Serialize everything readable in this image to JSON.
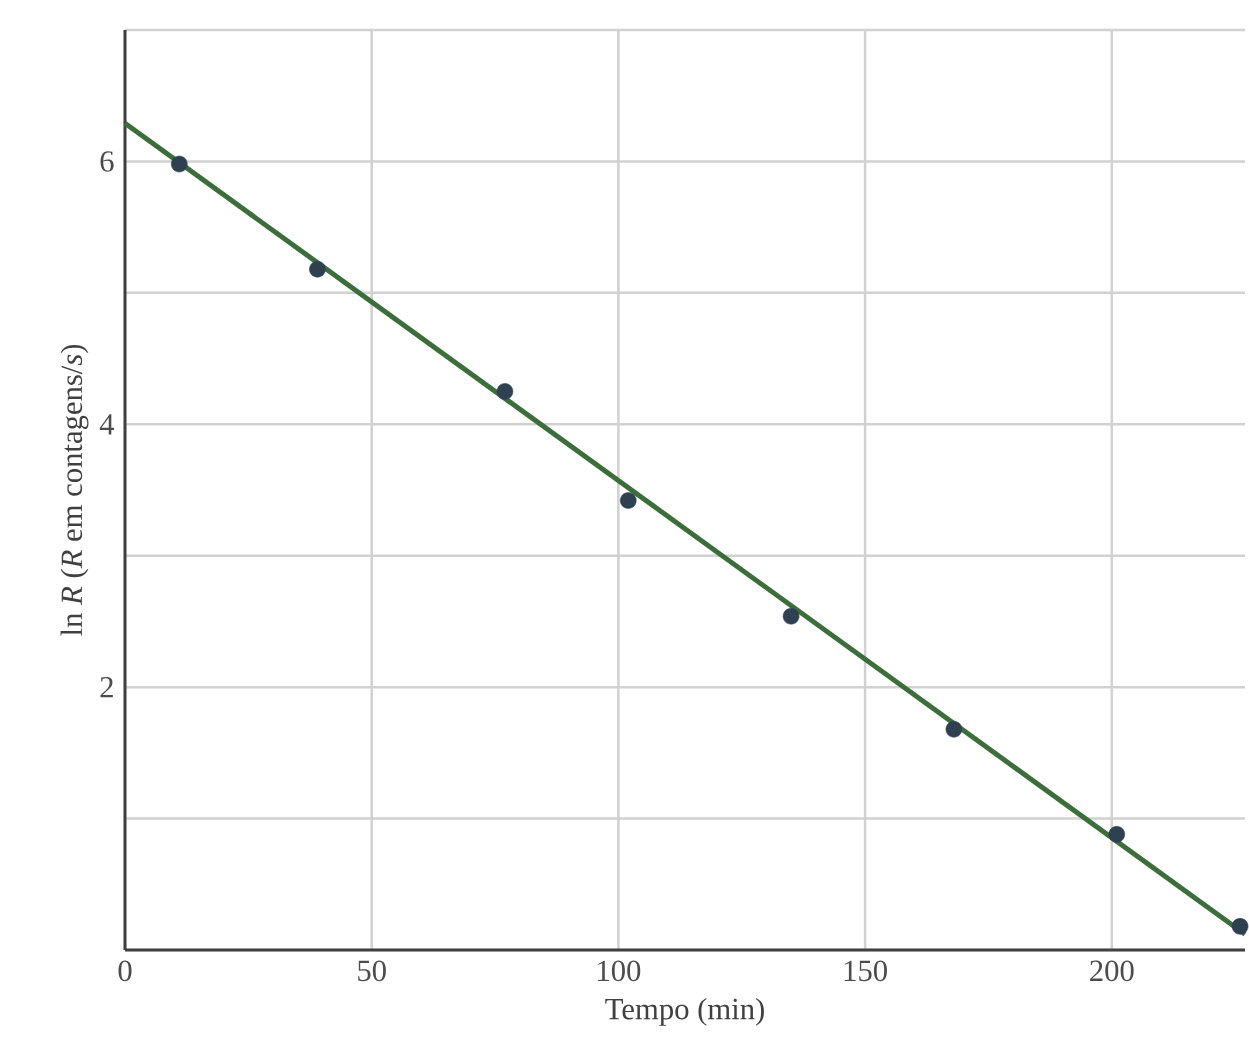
{
  "chart_data": {
    "type": "scatter",
    "xlabel": "Tempo (min)",
    "ylabel": "ln *R* (*R* em contagens/*s*)",
    "x": [
      11,
      39,
      77,
      102,
      135,
      168,
      201,
      226
    ],
    "xlim": [
      0,
      227
    ],
    "ylim": [
      0,
      7
    ],
    "xticks": [
      0,
      50,
      100,
      150,
      200
    ],
    "yticks": [
      {
        "value": 0,
        "label": null
      },
      {
        "value": 1,
        "label": null
      },
      2,
      {
        "value": 3,
        "label": null
      },
      4,
      {
        "value": 5,
        "label": null
      },
      6,
      {
        "value": 7,
        "label": null
      }
    ],
    "grid": true,
    "series": [
      {
        "color": "#2f4150",
        "marker": "circle",
        "values": [
          5.98,
          5.18,
          4.25,
          3.42,
          2.54,
          1.68,
          0.88,
          0.18
        ]
      },
      {
        "type": "line",
        "color": "#3c6e3c",
        "x": [
          0,
          227
        ],
        "values": [
          6.29,
          0.12
        ],
        "marker": "none",
        "line_style": "solid"
      }
    ]
  }
}
